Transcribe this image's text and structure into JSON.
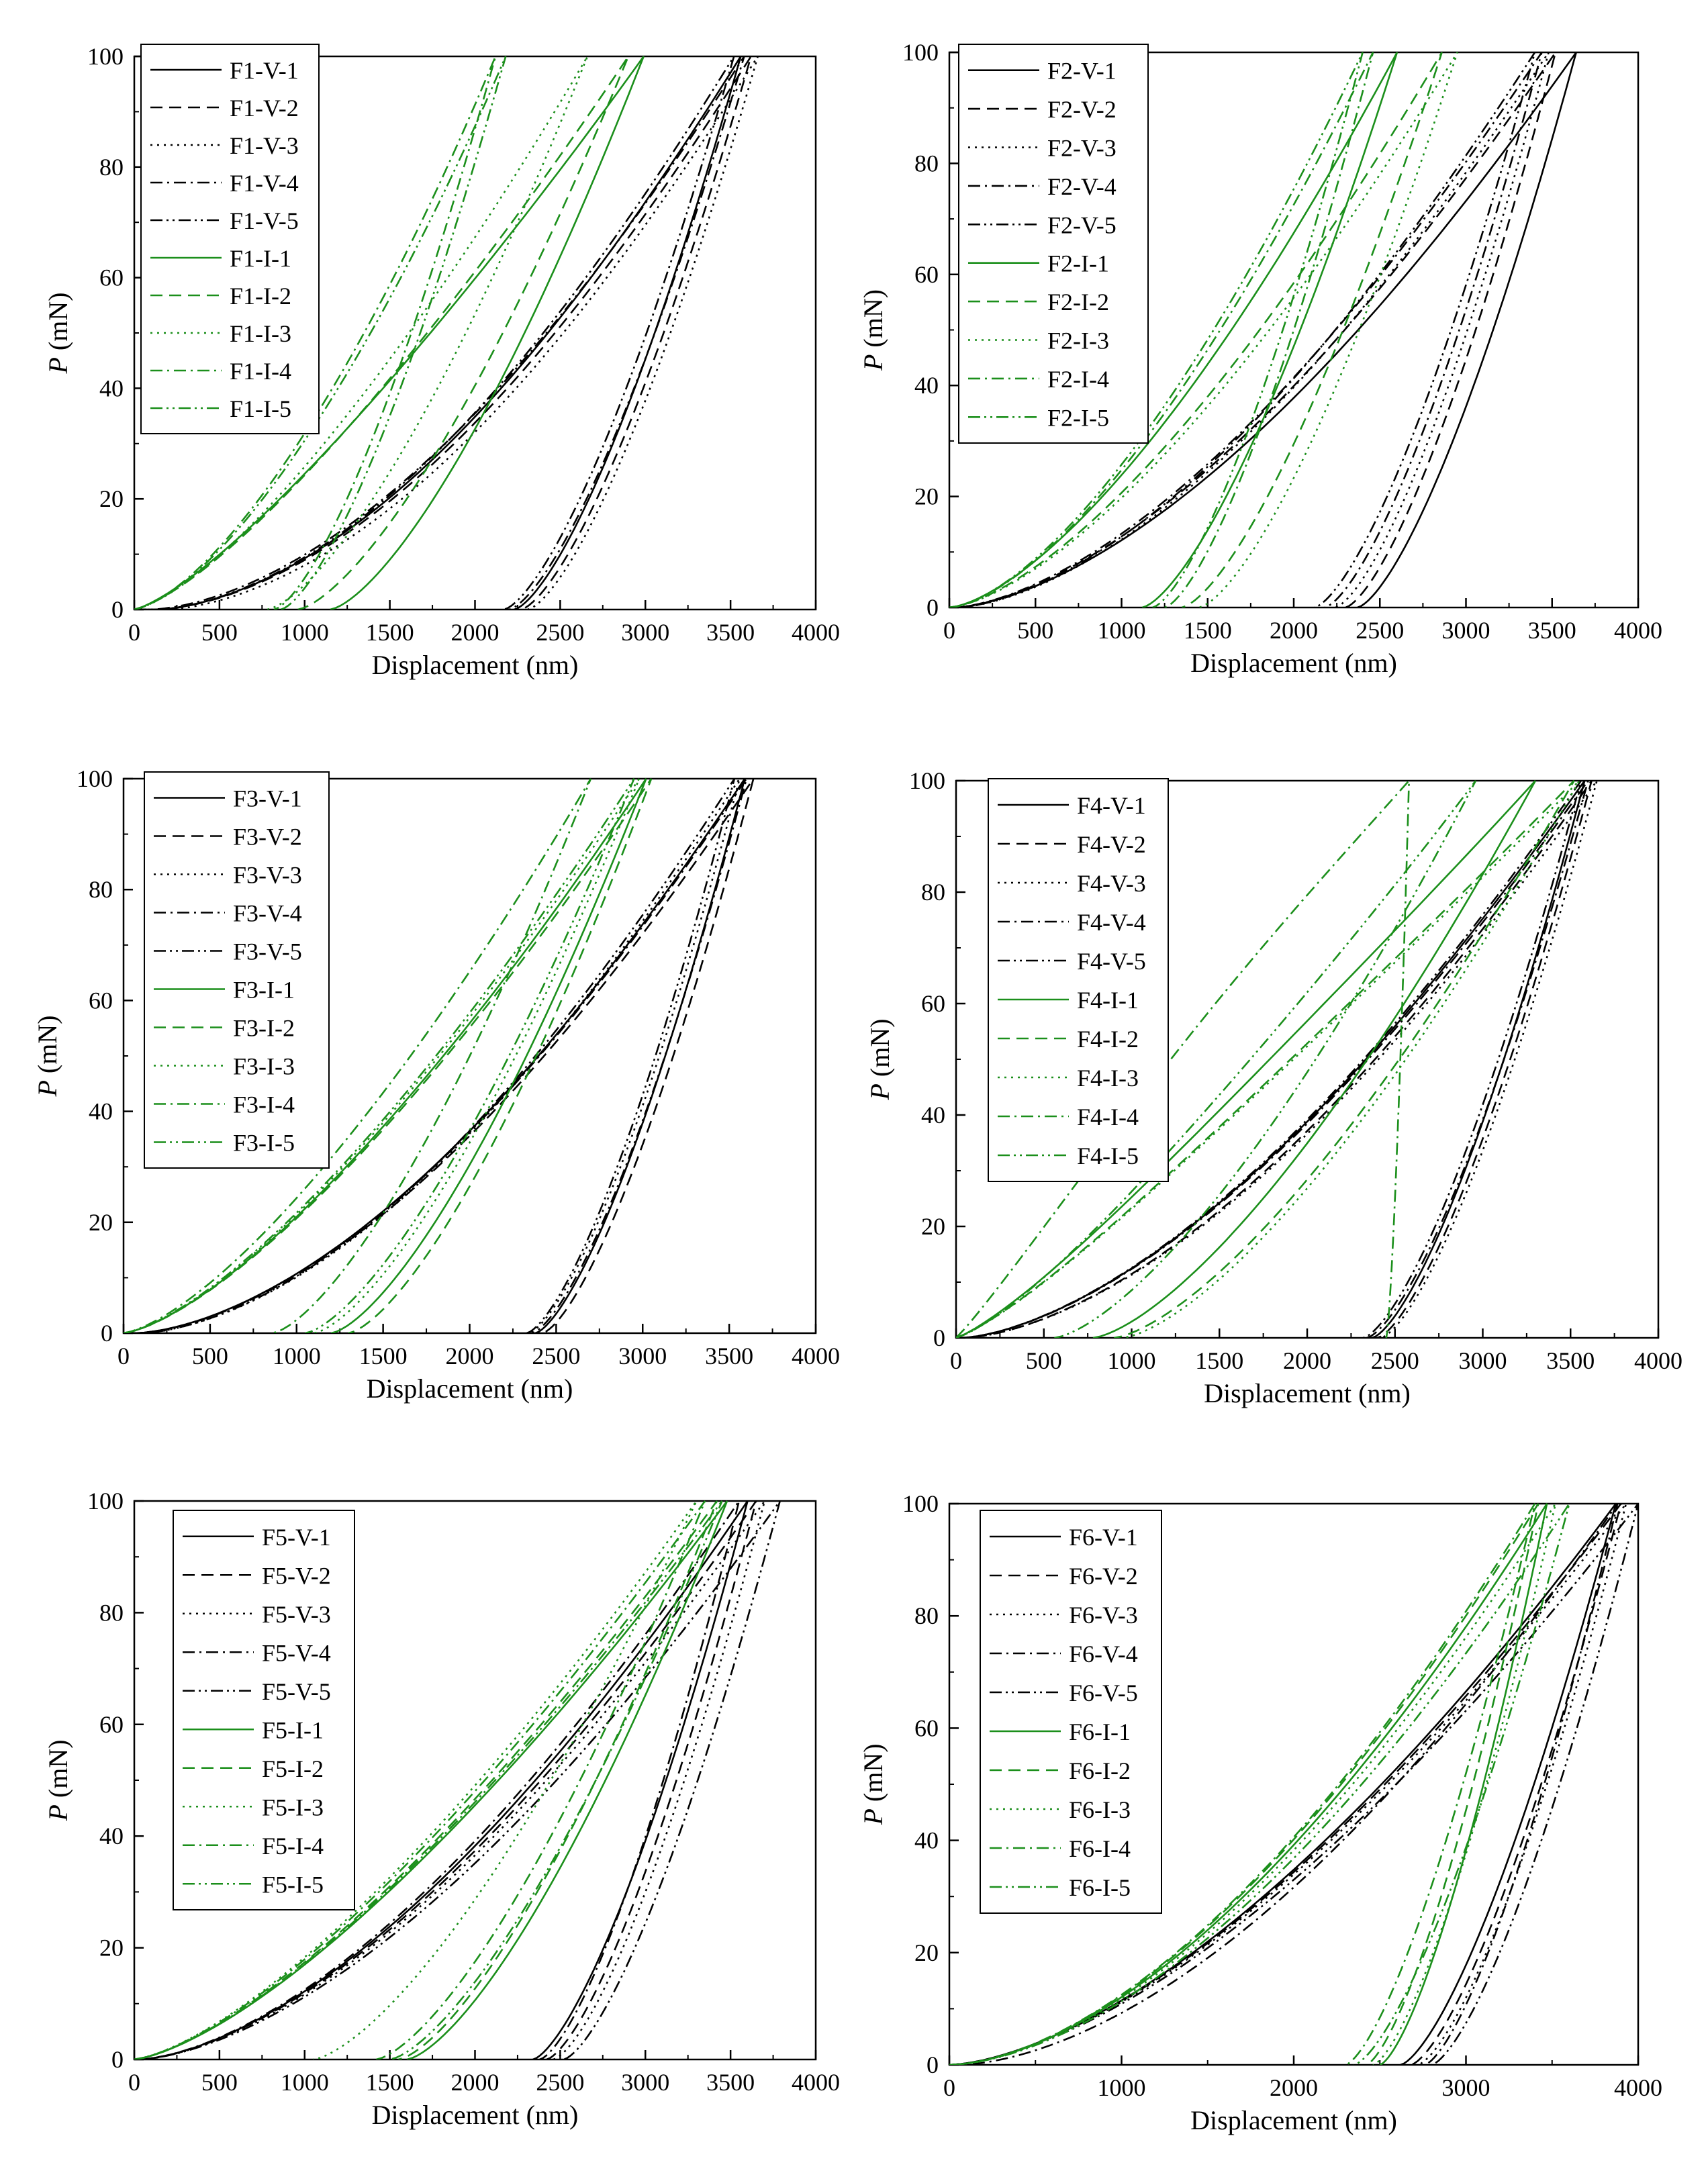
{
  "colors": {
    "V": "#000000",
    "I": "#1b8f1b"
  },
  "dash_styles": {
    "1": "",
    "2": "18,10",
    "3": "3,7",
    "4": "18,7,3,7",
    "5": "18,6,3,6,3,6"
  },
  "chart_data": [
    {
      "id": "F1",
      "type": "line",
      "xlabel": "Displacement (nm)",
      "ylabel_var": "P",
      "ylabel_unit": "(mN)",
      "xlim": [
        0,
        4000
      ],
      "ylim": [
        0,
        100
      ],
      "xticks": [
        "0",
        "500",
        "1000",
        "1500",
        "2000",
        "2500",
        "3000",
        "3500",
        "4000"
      ],
      "yticks": [
        "0",
        "20",
        "40",
        "60",
        "80",
        "100"
      ],
      "legend": [
        "F1-V-1",
        "F1-V-2",
        "F1-V-3",
        "F1-V-4",
        "F1-V-5",
        "F1-I-1",
        "F1-I-2",
        "F1-I-3",
        "F1-I-4",
        "F1-I-5"
      ],
      "series": [
        {
          "name": "F1-V-1",
          "group": "V",
          "style": "1",
          "peak": [
            3560,
            100
          ],
          "unload_start": 2230,
          "exp": 1.6,
          "bend": -0.05
        },
        {
          "name": "F1-V-2",
          "group": "V",
          "style": "2",
          "peak": [
            3620,
            100
          ],
          "unload_start": 2270,
          "exp": 1.6,
          "bend": -0.05
        },
        {
          "name": "F1-V-3",
          "group": "V",
          "style": "3",
          "peak": [
            3660,
            100
          ],
          "unload_start": 2310,
          "exp": 1.6,
          "bend": -0.06
        },
        {
          "name": "F1-V-4",
          "group": "V",
          "style": "4",
          "peak": [
            3580,
            100
          ],
          "unload_start": 2200,
          "exp": 1.6,
          "bend": -0.04
        },
        {
          "name": "F1-V-5",
          "group": "V",
          "style": "5",
          "peak": [
            3520,
            100
          ],
          "unload_start": 2170,
          "exp": 1.6,
          "bend": -0.05
        },
        {
          "name": "F1-I-1",
          "group": "I",
          "style": "1",
          "peak": [
            2990,
            100
          ],
          "unload_start": 1150,
          "exp": 1.35,
          "bend": 0.02
        },
        {
          "name": "F1-I-2",
          "group": "I",
          "style": "2",
          "peak": [
            2900,
            100
          ],
          "unload_start": 960,
          "exp": 1.4,
          "bend": 0.02
        },
        {
          "name": "F1-I-3",
          "group": "I",
          "style": "3",
          "peak": [
            2660,
            100
          ],
          "unload_start": 780,
          "exp": 1.5,
          "bend": 0.03
        },
        {
          "name": "F1-I-4",
          "group": "I",
          "style": "4",
          "peak": [
            2120,
            100
          ],
          "unload_start": 820,
          "exp": 1.7,
          "bend": 0.04
        },
        {
          "name": "F1-I-5",
          "group": "I",
          "style": "5",
          "peak": [
            2180,
            100
          ],
          "unload_start": 860,
          "exp": 1.7,
          "bend": 0.04
        }
      ]
    },
    {
      "id": "F2",
      "type": "line",
      "xlabel": "Displacement (nm)",
      "ylabel_var": "P",
      "ylabel_unit": "(mN)",
      "xlim": [
        0,
        4000
      ],
      "ylim": [
        0,
        100
      ],
      "xticks": [
        "0",
        "500",
        "1000",
        "1500",
        "2000",
        "2500",
        "3000",
        "3500",
        "4000"
      ],
      "yticks": [
        "0",
        "20",
        "40",
        "60",
        "80",
        "100"
      ],
      "legend": [
        "F2-V-1",
        "F2-V-2",
        "F2-V-3",
        "F2-V-4",
        "F2-V-5",
        "F2-I-1",
        "F2-I-2",
        "F2-I-3",
        "F2-I-4",
        "F2-I-5"
      ],
      "series": [
        {
          "name": "F2-V-1",
          "group": "V",
          "style": "1",
          "peak": [
            3640,
            100
          ],
          "unload_start": 2370,
          "exp": 1.5,
          "bend": -0.03
        },
        {
          "name": "F2-V-2",
          "group": "V",
          "style": "2",
          "peak": [
            3520,
            100
          ],
          "unload_start": 2300,
          "exp": 1.5,
          "bend": -0.03
        },
        {
          "name": "F2-V-3",
          "group": "V",
          "style": "3",
          "peak": [
            3480,
            100
          ],
          "unload_start": 2240,
          "exp": 1.5,
          "bend": -0.04
        },
        {
          "name": "F2-V-4",
          "group": "V",
          "style": "4",
          "peak": [
            3440,
            100
          ],
          "unload_start": 2180,
          "exp": 1.5,
          "bend": -0.03
        },
        {
          "name": "F2-V-5",
          "group": "V",
          "style": "5",
          "peak": [
            3400,
            100
          ],
          "unload_start": 2120,
          "exp": 1.5,
          "bend": -0.04
        },
        {
          "name": "F2-I-1",
          "group": "I",
          "style": "1",
          "peak": [
            2600,
            100
          ],
          "unload_start": 1120,
          "exp": 1.5,
          "bend": 0.0
        },
        {
          "name": "F2-I-2",
          "group": "I",
          "style": "2",
          "peak": [
            2860,
            100
          ],
          "unload_start": 1350,
          "exp": 1.5,
          "bend": 0.0
        },
        {
          "name": "F2-I-3",
          "group": "I",
          "style": "3",
          "peak": [
            2950,
            100
          ],
          "unload_start": 1450,
          "exp": 1.5,
          "bend": 0.0
        },
        {
          "name": "F2-I-4",
          "group": "I",
          "style": "4",
          "peak": [
            2460,
            100
          ],
          "unload_start": 1250,
          "exp": 1.55,
          "bend": 0.0
        },
        {
          "name": "F2-I-5",
          "group": "I",
          "style": "5",
          "peak": [
            2400,
            100
          ],
          "unload_start": 1180,
          "exp": 1.55,
          "bend": 0.0
        }
      ]
    },
    {
      "id": "F3",
      "type": "line",
      "xlabel": "Displacement (nm)",
      "ylabel_var": "P",
      "ylabel_unit": "(mN)",
      "xlim": [
        0,
        4000
      ],
      "ylim": [
        0,
        100
      ],
      "xticks": [
        "0",
        "500",
        "1000",
        "1500",
        "2000",
        "2500",
        "3000",
        "3500",
        "4000"
      ],
      "yticks": [
        "0",
        "20",
        "40",
        "60",
        "80",
        "100"
      ],
      "legend": [
        "F3-V-1",
        "F3-V-2",
        "F3-V-3",
        "F3-V-4",
        "F3-V-5",
        "F3-I-1",
        "F3-I-2",
        "F3-I-3",
        "F3-I-4",
        "F3-I-5"
      ],
      "series": [
        {
          "name": "F3-V-1",
          "group": "V",
          "style": "1",
          "peak": [
            3590,
            100
          ],
          "unload_start": 2380,
          "exp": 1.55,
          "bend": -0.04
        },
        {
          "name": "F3-V-2",
          "group": "V",
          "style": "2",
          "peak": [
            3640,
            100
          ],
          "unload_start": 2420,
          "exp": 1.55,
          "bend": -0.04
        },
        {
          "name": "F3-V-3",
          "group": "V",
          "style": "3",
          "peak": [
            3560,
            100
          ],
          "unload_start": 2340,
          "exp": 1.55,
          "bend": -0.05
        },
        {
          "name": "F3-V-4",
          "group": "V",
          "style": "4",
          "peak": [
            3600,
            100
          ],
          "unload_start": 2360,
          "exp": 1.55,
          "bend": -0.04
        },
        {
          "name": "F3-V-5",
          "group": "V",
          "style": "5",
          "peak": [
            3530,
            100
          ],
          "unload_start": 2330,
          "exp": 1.55,
          "bend": -0.05
        },
        {
          "name": "F3-I-1",
          "group": "I",
          "style": "1",
          "peak": [
            3020,
            100
          ],
          "unload_start": 1200,
          "exp": 1.45,
          "bend": 0.01
        },
        {
          "name": "F3-I-2",
          "group": "I",
          "style": "2",
          "peak": [
            3050,
            100
          ],
          "unload_start": 1300,
          "exp": 1.45,
          "bend": 0.01
        },
        {
          "name": "F3-I-3",
          "group": "I",
          "style": "3",
          "peak": [
            2980,
            100
          ],
          "unload_start": 1100,
          "exp": 1.45,
          "bend": 0.01
        },
        {
          "name": "F3-I-4",
          "group": "I",
          "style": "4",
          "peak": [
            2700,
            100
          ],
          "unload_start": 860,
          "exp": 1.5,
          "bend": 0.02
        },
        {
          "name": "F3-I-5",
          "group": "I",
          "style": "5",
          "peak": [
            2950,
            100
          ],
          "unload_start": 1050,
          "exp": 1.45,
          "bend": 0.01
        }
      ]
    },
    {
      "id": "F4",
      "type": "line",
      "xlabel": "Displacement (nm)",
      "ylabel_var": "P",
      "ylabel_unit": "(mN)",
      "xlim": [
        0,
        4000
      ],
      "ylim": [
        0,
        100
      ],
      "xticks": [
        "0",
        "500",
        "1000",
        "1500",
        "2000",
        "2500",
        "3000",
        "3500",
        "4000"
      ],
      "yticks": [
        "0",
        "20",
        "40",
        "60",
        "80",
        "100"
      ],
      "legend": [
        "F4-V-1",
        "F4-V-2",
        "F4-V-3",
        "F4-V-4",
        "F4-V-5",
        "F4-I-1",
        "F4-I-2",
        "F4-I-3",
        "F4-I-4",
        "F4-I-5"
      ],
      "series": [
        {
          "name": "F4-V-1",
          "group": "V",
          "style": "1",
          "peak": [
            3580,
            100
          ],
          "unload_start": 2370,
          "exp": 1.5,
          "bend": -0.03
        },
        {
          "name": "F4-V-2",
          "group": "V",
          "style": "2",
          "peak": [
            3620,
            100
          ],
          "unload_start": 2400,
          "exp": 1.5,
          "bend": -0.04
        },
        {
          "name": "F4-V-3",
          "group": "V",
          "style": "3",
          "peak": [
            3650,
            100
          ],
          "unload_start": 2420,
          "exp": 1.5,
          "bend": -0.04
        },
        {
          "name": "F4-V-4",
          "group": "V",
          "style": "4",
          "peak": [
            3600,
            100
          ],
          "unload_start": 2340,
          "exp": 1.5,
          "bend": -0.03
        },
        {
          "name": "F4-V-5",
          "group": "V",
          "style": "5",
          "peak": [
            3560,
            100
          ],
          "unload_start": 2320,
          "exp": 1.5,
          "bend": -0.03
        },
        {
          "name": "F4-I-1",
          "group": "I",
          "style": "1",
          "peak": [
            3300,
            100
          ],
          "unload_start": 780,
          "exp": 1.3,
          "bend": 0.05
        },
        {
          "name": "F4-I-2",
          "group": "I",
          "style": "2",
          "peak": [
            3520,
            100
          ],
          "unload_start": 900,
          "exp": 1.3,
          "bend": 0.05
        },
        {
          "name": "F4-I-3",
          "group": "I",
          "style": "3",
          "peak": [
            3550,
            100
          ],
          "unload_start": 950,
          "exp": 1.3,
          "bend": 0.05
        },
        {
          "name": "F4-I-4",
          "group": "I",
          "style": "4",
          "peak": [
            2580,
            100
          ],
          "unload_start": 2450,
          "exp": 1.1,
          "bend": 0.06
        },
        {
          "name": "F4-I-5",
          "group": "I",
          "style": "5",
          "peak": [
            2960,
            100
          ],
          "unload_start": 560,
          "exp": 1.4,
          "bend": 0.05
        }
      ]
    },
    {
      "id": "F5",
      "type": "line",
      "xlabel": "Displacement (nm)",
      "ylabel_var": "P",
      "ylabel_unit": "(mN)",
      "xlim": [
        0,
        4000
      ],
      "ylim": [
        0,
        100
      ],
      "xticks": [
        "0",
        "500",
        "1000",
        "1500",
        "2000",
        "2500",
        "3000",
        "3500",
        "4000"
      ],
      "yticks": [
        "0",
        "20",
        "40",
        "60",
        "80",
        "100"
      ],
      "legend": [
        "F5-V-1",
        "F5-V-2",
        "F5-V-3",
        "F5-V-4",
        "F5-V-5",
        "F5-I-1",
        "F5-I-2",
        "F5-I-3",
        "F5-I-4",
        "F5-I-5"
      ],
      "series": [
        {
          "name": "F5-V-1",
          "group": "V",
          "style": "1",
          "peak": [
            3600,
            100
          ],
          "unload_start": 2340,
          "exp": 1.55,
          "bend": -0.02
        },
        {
          "name": "F5-V-2",
          "group": "V",
          "style": "2",
          "peak": [
            3650,
            100
          ],
          "unload_start": 2420,
          "exp": 1.55,
          "bend": -0.02
        },
        {
          "name": "F5-V-3",
          "group": "V",
          "style": "3",
          "peak": [
            3700,
            100
          ],
          "unload_start": 2460,
          "exp": 1.55,
          "bend": -0.02
        },
        {
          "name": "F5-V-4",
          "group": "V",
          "style": "4",
          "peak": [
            3550,
            100
          ],
          "unload_start": 2380,
          "exp": 1.55,
          "bend": -0.02
        },
        {
          "name": "F5-V-5",
          "group": "V",
          "style": "5",
          "peak": [
            3790,
            100
          ],
          "unload_start": 2520,
          "exp": 1.55,
          "bend": -0.02
        },
        {
          "name": "F5-I-1",
          "group": "I",
          "style": "1",
          "peak": [
            3480,
            100
          ],
          "unload_start": 1600,
          "exp": 1.5,
          "bend": 0.02
        },
        {
          "name": "F5-I-2",
          "group": "I",
          "style": "2",
          "peak": [
            3420,
            100
          ],
          "unload_start": 1550,
          "exp": 1.5,
          "bend": 0.02
        },
        {
          "name": "F5-I-3",
          "group": "I",
          "style": "3",
          "peak": [
            3300,
            100
          ],
          "unload_start": 1050,
          "exp": 1.5,
          "bend": 0.02
        },
        {
          "name": "F5-I-4",
          "group": "I",
          "style": "4",
          "peak": [
            3350,
            100
          ],
          "unload_start": 1420,
          "exp": 1.5,
          "bend": 0.02
        },
        {
          "name": "F5-I-5",
          "group": "I",
          "style": "5",
          "peak": [
            3450,
            100
          ],
          "unload_start": 1500,
          "exp": 1.5,
          "bend": 0.02
        }
      ]
    },
    {
      "id": "F6",
      "type": "line",
      "xlabel": "Displacement (nm)",
      "ylabel_var": "P",
      "ylabel_unit": "(mN)",
      "xlim": [
        0,
        4000
      ],
      "ylim": [
        0,
        100
      ],
      "xticks": [
        "0",
        "1000",
        "2000",
        "3000",
        "4000"
      ],
      "yticks": [
        "0",
        "20",
        "40",
        "60",
        "80",
        "100"
      ],
      "legend": [
        "F6-V-1",
        "F6-V-2",
        "F6-V-3",
        "F6-V-4",
        "F6-V-5",
        "F6-I-1",
        "F6-I-2",
        "F6-I-3",
        "F6-I-4",
        "F6-I-5"
      ],
      "series": [
        {
          "name": "F6-V-1",
          "group": "V",
          "style": "1",
          "peak": [
            3870,
            100
          ],
          "unload_start": 2620,
          "exp": 1.6,
          "bend": 0.0
        },
        {
          "name": "F6-V-2",
          "group": "V",
          "style": "2",
          "peak": [
            3900,
            100
          ],
          "unload_start": 2680,
          "exp": 1.6,
          "bend": 0.0
        },
        {
          "name": "F6-V-3",
          "group": "V",
          "style": "3",
          "peak": [
            3930,
            100
          ],
          "unload_start": 2720,
          "exp": 1.6,
          "bend": 0.0
        },
        {
          "name": "F6-V-4",
          "group": "V",
          "style": "4",
          "peak": [
            3880,
            100
          ],
          "unload_start": 2760,
          "exp": 1.6,
          "bend": -0.03
        },
        {
          "name": "F6-V-5",
          "group": "V",
          "style": "5",
          "peak": [
            4000,
            100
          ],
          "unload_start": 2800,
          "exp": 1.6,
          "bend": 0.0
        },
        {
          "name": "F6-I-1",
          "group": "I",
          "style": "1",
          "peak": [
            3470,
            100
          ],
          "unload_start": 2500,
          "exp": 1.7,
          "bend": 0.0
        },
        {
          "name": "F6-I-2",
          "group": "I",
          "style": "2",
          "peak": [
            3420,
            100
          ],
          "unload_start": 2420,
          "exp": 1.7,
          "bend": 0.0
        },
        {
          "name": "F6-I-3",
          "group": "I",
          "style": "3",
          "peak": [
            3520,
            100
          ],
          "unload_start": 2460,
          "exp": 1.7,
          "bend": 0.0
        },
        {
          "name": "F6-I-4",
          "group": "I",
          "style": "4",
          "peak": [
            3400,
            100
          ],
          "unload_start": 2300,
          "exp": 1.7,
          "bend": 0.0
        },
        {
          "name": "F6-I-5",
          "group": "I",
          "style": "5",
          "peak": [
            3600,
            100
          ],
          "unload_start": 2350,
          "exp": 1.7,
          "bend": 0.0
        }
      ]
    }
  ]
}
